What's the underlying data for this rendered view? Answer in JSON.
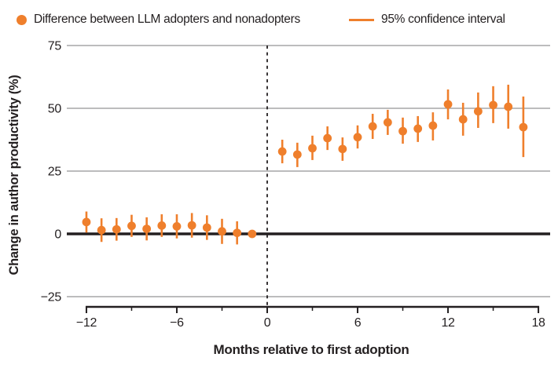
{
  "legend": {
    "points_label": "Difference between LLM adopters and nonadopters",
    "ci_label": "95% confidence interval"
  },
  "colors": {
    "accent_orange": "#EF7F2C",
    "grid_gray": "#A5A5A7",
    "ink": "#231F20"
  },
  "chart_data": {
    "type": "scatter",
    "title": "",
    "xlabel": "Months relative to first adoption",
    "ylabel": "Change in author productivity (%)",
    "xlim": [
      -13.3,
      18.8
    ],
    "ylim": [
      -29,
      75
    ],
    "grid": "horizontal",
    "legend_position": "top",
    "x_major_ticks": [
      -12,
      -6,
      0,
      6,
      12,
      18
    ],
    "x_minor_ticks": [
      -9,
      -3,
      3,
      9,
      15
    ],
    "y_ticks": [
      75,
      50,
      25,
      0,
      -25
    ],
    "reference_line_y": 0,
    "event_line_x": 0,
    "series": [
      {
        "name": "Difference between LLM adopters and nonadopters",
        "points": [
          {
            "month": -12,
            "value": 4.7,
            "ci_low": 0.5,
            "ci_high": 8.9
          },
          {
            "month": -11,
            "value": 1.5,
            "ci_low": -3.2,
            "ci_high": 6.2
          },
          {
            "month": -10,
            "value": 1.8,
            "ci_low": -2.7,
            "ci_high": 6.3
          },
          {
            "month": -9,
            "value": 3.2,
            "ci_low": -1.2,
            "ci_high": 7.6
          },
          {
            "month": -8,
            "value": 2.0,
            "ci_low": -2.6,
            "ci_high": 6.6
          },
          {
            "month": -7,
            "value": 3.3,
            "ci_low": -1.2,
            "ci_high": 7.8
          },
          {
            "month": -6,
            "value": 3.0,
            "ci_low": -1.8,
            "ci_high": 7.8
          },
          {
            "month": -5,
            "value": 3.4,
            "ci_low": -1.5,
            "ci_high": 8.3
          },
          {
            "month": -4,
            "value": 2.5,
            "ci_low": -2.4,
            "ci_high": 7.4
          },
          {
            "month": -3,
            "value": 1.0,
            "ci_low": -4.0,
            "ci_high": 6.0
          },
          {
            "month": -2,
            "value": 0.4,
            "ci_low": -4.2,
            "ci_high": 5.0
          },
          {
            "month": -1,
            "value": 0.0,
            "ci_low": 0.0,
            "ci_high": 0.0
          },
          {
            "month": 1,
            "value": 32.8,
            "ci_low": 28.1,
            "ci_high": 37.5
          },
          {
            "month": 2,
            "value": 31.6,
            "ci_low": 26.6,
            "ci_high": 36.3
          },
          {
            "month": 3,
            "value": 34.1,
            "ci_low": 29.4,
            "ci_high": 39.1
          },
          {
            "month": 4,
            "value": 38.1,
            "ci_low": 33.4,
            "ci_high": 42.8
          },
          {
            "month": 5,
            "value": 33.8,
            "ci_low": 29.1,
            "ci_high": 38.4
          },
          {
            "month": 6,
            "value": 38.5,
            "ci_low": 34.0,
            "ci_high": 43.2
          },
          {
            "month": 7,
            "value": 42.8,
            "ci_low": 37.8,
            "ci_high": 47.8
          },
          {
            "month": 8,
            "value": 44.4,
            "ci_low": 39.4,
            "ci_high": 49.4
          },
          {
            "month": 9,
            "value": 40.9,
            "ci_low": 35.9,
            "ci_high": 46.3
          },
          {
            "month": 10,
            "value": 41.9,
            "ci_low": 36.6,
            "ci_high": 46.9
          },
          {
            "month": 11,
            "value": 43.1,
            "ci_low": 37.2,
            "ci_high": 48.4
          },
          {
            "month": 12,
            "value": 51.6,
            "ci_low": 45.6,
            "ci_high": 57.5
          },
          {
            "month": 13,
            "value": 45.6,
            "ci_low": 39.1,
            "ci_high": 52.2
          },
          {
            "month": 14,
            "value": 48.8,
            "ci_low": 42.2,
            "ci_high": 56.3
          },
          {
            "month": 15,
            "value": 51.3,
            "ci_low": 44.1,
            "ci_high": 58.8
          },
          {
            "month": 16,
            "value": 50.6,
            "ci_low": 41.9,
            "ci_high": 59.4
          },
          {
            "month": 17,
            "value": 42.5,
            "ci_low": 30.6,
            "ci_high": 54.7
          }
        ]
      }
    ]
  }
}
